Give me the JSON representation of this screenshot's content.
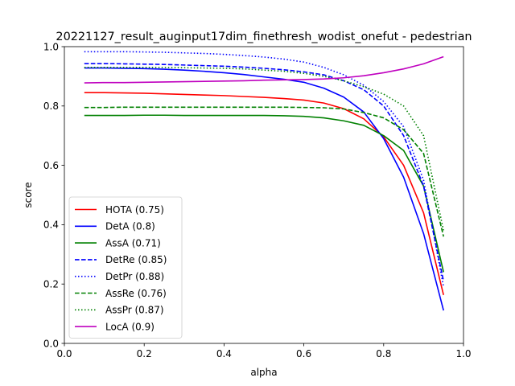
{
  "chart_data": {
    "type": "line",
    "title": "20221127_result_auginput17dim_finethresh_wodist_onefut - pedestrian",
    "xlabel": "alpha",
    "ylabel": "score",
    "xlim": [
      0.0,
      1.0
    ],
    "ylim": [
      0.0,
      1.0
    ],
    "xticks": [
      0.0,
      0.2,
      0.4,
      0.6,
      0.8,
      1.0
    ],
    "yticks": [
      0.0,
      0.2,
      0.4,
      0.6,
      0.8,
      1.0
    ],
    "xtick_labels": [
      "0.0",
      "0.2",
      "0.4",
      "0.6",
      "0.8",
      "1.0"
    ],
    "ytick_labels": [
      "0.0",
      "0.2",
      "0.4",
      "0.6",
      "0.8",
      "1.0"
    ],
    "grid": false,
    "legend_position": "lower-left",
    "x": [
      0.05,
      0.1,
      0.15,
      0.2,
      0.25,
      0.3,
      0.35,
      0.4,
      0.45,
      0.5,
      0.55,
      0.6,
      0.65,
      0.7,
      0.75,
      0.8,
      0.85,
      0.9,
      0.95
    ],
    "series": [
      {
        "name": "HOTA (0.75)",
        "color": "#ff0000",
        "dash": "solid",
        "values": [
          0.845,
          0.845,
          0.844,
          0.843,
          0.841,
          0.839,
          0.837,
          0.835,
          0.832,
          0.829,
          0.825,
          0.82,
          0.81,
          0.791,
          0.757,
          0.696,
          0.6,
          0.44,
          0.163
        ]
      },
      {
        "name": "DetA (0.8)",
        "color": "#0000ff",
        "dash": "solid",
        "values": [
          0.928,
          0.928,
          0.927,
          0.926,
          0.924,
          0.921,
          0.917,
          0.912,
          0.906,
          0.898,
          0.89,
          0.88,
          0.86,
          0.83,
          0.78,
          0.69,
          0.56,
          0.37,
          0.111
        ]
      },
      {
        "name": "AssA (0.71)",
        "color": "#008000",
        "dash": "solid",
        "values": [
          0.768,
          0.768,
          0.768,
          0.769,
          0.769,
          0.768,
          0.768,
          0.768,
          0.768,
          0.768,
          0.767,
          0.765,
          0.76,
          0.75,
          0.735,
          0.7,
          0.65,
          0.53,
          0.24
        ]
      },
      {
        "name": "DetRe (0.85)",
        "color": "#0000ff",
        "dash": "dashed",
        "values": [
          0.943,
          0.943,
          0.942,
          0.941,
          0.94,
          0.938,
          0.936,
          0.934,
          0.931,
          0.927,
          0.922,
          0.915,
          0.905,
          0.885,
          0.855,
          0.8,
          0.7,
          0.53,
          0.21
        ]
      },
      {
        "name": "DetPr (0.88)",
        "color": "#0000ff",
        "dash": "dotted",
        "values": [
          0.983,
          0.983,
          0.983,
          0.982,
          0.981,
          0.979,
          0.977,
          0.974,
          0.97,
          0.965,
          0.958,
          0.948,
          0.93,
          0.905,
          0.87,
          0.815,
          0.73,
          0.55,
          0.19
        ]
      },
      {
        "name": "AssRe (0.76)",
        "color": "#008000",
        "dash": "dashed",
        "values": [
          0.795,
          0.795,
          0.796,
          0.796,
          0.796,
          0.796,
          0.796,
          0.796,
          0.796,
          0.796,
          0.796,
          0.795,
          0.794,
          0.79,
          0.778,
          0.76,
          0.72,
          0.64,
          0.36
        ]
      },
      {
        "name": "AssPr (0.87)",
        "color": "#008000",
        "dash": "dotted",
        "values": [
          0.93,
          0.93,
          0.93,
          0.93,
          0.93,
          0.929,
          0.928,
          0.927,
          0.925,
          0.921,
          0.917,
          0.91,
          0.9,
          0.885,
          0.865,
          0.84,
          0.8,
          0.7,
          0.38
        ]
      },
      {
        "name": "LocA (0.9)",
        "color": "#bf00bf",
        "dash": "solid",
        "values": [
          0.878,
          0.879,
          0.879,
          0.88,
          0.881,
          0.882,
          0.883,
          0.884,
          0.885,
          0.887,
          0.888,
          0.889,
          0.891,
          0.895,
          0.902,
          0.912,
          0.925,
          0.942,
          0.966
        ]
      }
    ]
  }
}
